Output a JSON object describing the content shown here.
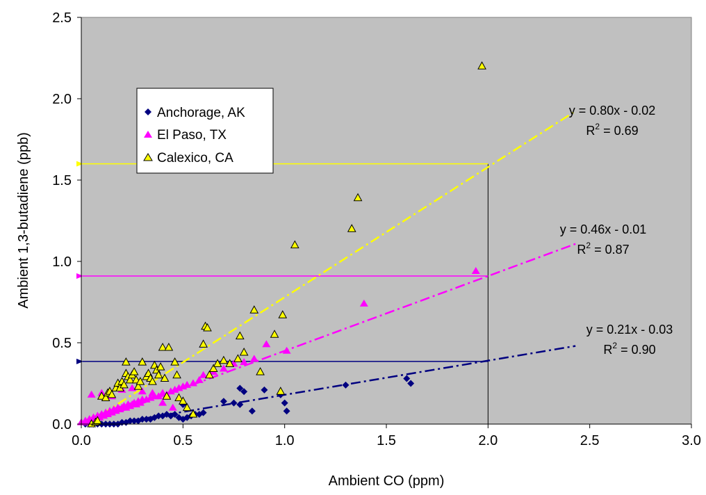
{
  "chart_data": {
    "type": "scatter",
    "title": "",
    "xlabel": "Ambient CO (ppm)",
    "ylabel": "Ambient 1,3-butadiene (ppb)",
    "xlim": [
      0,
      3
    ],
    "ylim": [
      0,
      2.5
    ],
    "x_ticks": [
      "0.0",
      "0.5",
      "1.0",
      "1.5",
      "2.0",
      "2.5",
      "3.0"
    ],
    "y_ticks": [
      "0.0",
      "0.5",
      "1.0",
      "1.5",
      "2.0",
      "2.5"
    ],
    "grid": false,
    "plot_background": "#c0c0c0",
    "legend_position": "upper-left inside plot",
    "series": [
      {
        "name": "Anchorage, AK",
        "marker": "diamond",
        "color": "#000080",
        "points": [
          [
            0.02,
            0.0
          ],
          [
            0.04,
            0.0
          ],
          [
            0.06,
            0.0
          ],
          [
            0.08,
            0.0
          ],
          [
            0.1,
            0.0
          ],
          [
            0.12,
            0.0
          ],
          [
            0.14,
            0.0
          ],
          [
            0.16,
            0.0
          ],
          [
            0.18,
            0.0
          ],
          [
            0.2,
            0.01
          ],
          [
            0.22,
            0.01
          ],
          [
            0.24,
            0.02
          ],
          [
            0.26,
            0.02
          ],
          [
            0.28,
            0.02
          ],
          [
            0.3,
            0.03
          ],
          [
            0.32,
            0.03
          ],
          [
            0.34,
            0.03
          ],
          [
            0.36,
            0.04
          ],
          [
            0.38,
            0.05
          ],
          [
            0.4,
            0.05
          ],
          [
            0.42,
            0.06
          ],
          [
            0.44,
            0.05
          ],
          [
            0.46,
            0.06
          ],
          [
            0.48,
            0.04
          ],
          [
            0.5,
            0.03
          ],
          [
            0.52,
            0.04
          ],
          [
            0.5,
            0.12
          ],
          [
            0.54,
            0.05
          ],
          [
            0.56,
            0.06
          ],
          [
            0.58,
            0.06
          ],
          [
            0.6,
            0.07
          ],
          [
            0.7,
            0.14
          ],
          [
            0.75,
            0.13
          ],
          [
            0.78,
            0.12
          ],
          [
            0.78,
            0.22
          ],
          [
            0.8,
            0.2
          ],
          [
            0.84,
            0.08
          ],
          [
            0.9,
            0.21
          ],
          [
            0.98,
            0.18
          ],
          [
            1.0,
            0.13
          ],
          [
            1.01,
            0.08
          ],
          [
            1.3,
            0.24
          ],
          [
            1.6,
            0.28
          ],
          [
            1.62,
            0.25
          ]
        ]
      },
      {
        "name": "El Paso, TX",
        "marker": "triangle",
        "color": "#ff00ff",
        "points": [
          [
            0.0,
            0.01
          ],
          [
            0.02,
            0.02
          ],
          [
            0.03,
            0.01
          ],
          [
            0.04,
            0.03
          ],
          [
            0.05,
            0.02
          ],
          [
            0.06,
            0.04
          ],
          [
            0.07,
            0.03
          ],
          [
            0.08,
            0.05
          ],
          [
            0.09,
            0.04
          ],
          [
            0.1,
            0.06
          ],
          [
            0.11,
            0.05
          ],
          [
            0.12,
            0.07
          ],
          [
            0.13,
            0.06
          ],
          [
            0.14,
            0.08
          ],
          [
            0.15,
            0.07
          ],
          [
            0.16,
            0.09
          ],
          [
            0.17,
            0.08
          ],
          [
            0.18,
            0.1
          ],
          [
            0.19,
            0.09
          ],
          [
            0.2,
            0.1
          ],
          [
            0.21,
            0.11
          ],
          [
            0.22,
            0.1
          ],
          [
            0.23,
            0.12
          ],
          [
            0.24,
            0.11
          ],
          [
            0.25,
            0.12
          ],
          [
            0.26,
            0.13
          ],
          [
            0.27,
            0.12
          ],
          [
            0.28,
            0.14
          ],
          [
            0.29,
            0.13
          ],
          [
            0.3,
            0.15
          ],
          [
            0.32,
            0.15
          ],
          [
            0.34,
            0.16
          ],
          [
            0.36,
            0.17
          ],
          [
            0.38,
            0.17
          ],
          [
            0.4,
            0.19
          ],
          [
            0.42,
            0.18
          ],
          [
            0.44,
            0.2
          ],
          [
            0.46,
            0.21
          ],
          [
            0.48,
            0.22
          ],
          [
            0.5,
            0.23
          ],
          [
            0.52,
            0.24
          ],
          [
            0.55,
            0.25
          ],
          [
            0.58,
            0.27
          ],
          [
            0.6,
            0.3
          ],
          [
            0.65,
            0.32
          ],
          [
            0.7,
            0.34
          ],
          [
            0.75,
            0.37
          ],
          [
            0.8,
            0.38
          ],
          [
            0.85,
            0.4
          ],
          [
            0.05,
            0.18
          ],
          [
            0.1,
            0.19
          ],
          [
            0.15,
            0.17
          ],
          [
            0.2,
            0.21
          ],
          [
            0.25,
            0.22
          ],
          [
            0.3,
            0.2
          ],
          [
            0.35,
            0.19
          ],
          [
            0.4,
            0.13
          ],
          [
            0.42,
            0.17
          ],
          [
            0.45,
            0.1
          ],
          [
            0.91,
            0.49
          ],
          [
            1.01,
            0.45
          ],
          [
            1.39,
            0.74
          ],
          [
            1.94,
            0.94
          ]
        ]
      },
      {
        "name": "Calexico, CA",
        "marker": "triangle-open",
        "color": "#ffff00",
        "points": [
          [
            0.05,
            0.0
          ],
          [
            0.07,
            0.01
          ],
          [
            0.08,
            0.02
          ],
          [
            0.1,
            0.17
          ],
          [
            0.12,
            0.16
          ],
          [
            0.13,
            0.19
          ],
          [
            0.14,
            0.2
          ],
          [
            0.15,
            0.18
          ],
          [
            0.17,
            0.22
          ],
          [
            0.18,
            0.25
          ],
          [
            0.19,
            0.22
          ],
          [
            0.2,
            0.26
          ],
          [
            0.21,
            0.24
          ],
          [
            0.22,
            0.31
          ],
          [
            0.23,
            0.29
          ],
          [
            0.24,
            0.27
          ],
          [
            0.25,
            0.3
          ],
          [
            0.26,
            0.32
          ],
          [
            0.27,
            0.27
          ],
          [
            0.28,
            0.23
          ],
          [
            0.29,
            0.26
          ],
          [
            0.3,
            0.38
          ],
          [
            0.32,
            0.29
          ],
          [
            0.33,
            0.31
          ],
          [
            0.34,
            0.28
          ],
          [
            0.35,
            0.26
          ],
          [
            0.36,
            0.36
          ],
          [
            0.37,
            0.33
          ],
          [
            0.38,
            0.3
          ],
          [
            0.39,
            0.35
          ],
          [
            0.4,
            0.47
          ],
          [
            0.41,
            0.28
          ],
          [
            0.42,
            0.17
          ],
          [
            0.43,
            0.47
          ],
          [
            0.46,
            0.38
          ],
          [
            0.47,
            0.3
          ],
          [
            0.48,
            0.16
          ],
          [
            0.5,
            0.14
          ],
          [
            0.52,
            0.1
          ],
          [
            0.55,
            0.06
          ],
          [
            0.6,
            0.49
          ],
          [
            0.61,
            0.6
          ],
          [
            0.62,
            0.59
          ],
          [
            0.63,
            0.3
          ],
          [
            0.65,
            0.34
          ],
          [
            0.67,
            0.37
          ],
          [
            0.7,
            0.39
          ],
          [
            0.73,
            0.37
          ],
          [
            0.77,
            0.4
          ],
          [
            0.78,
            0.54
          ],
          [
            0.8,
            0.44
          ],
          [
            0.85,
            0.7
          ],
          [
            0.88,
            0.32
          ],
          [
            0.95,
            0.55
          ],
          [
            0.99,
            0.67
          ],
          [
            0.98,
            0.2
          ],
          [
            1.05,
            1.1
          ],
          [
            1.33,
            1.2
          ],
          [
            1.36,
            1.39
          ],
          [
            1.97,
            2.2
          ],
          [
            0.22,
            0.38
          ]
        ]
      }
    ],
    "trendlines": [
      {
        "series": "Anchorage, AK",
        "color": "#000080",
        "slope": 0.21,
        "intercept": -0.03,
        "x_range": [
          0,
          2.43
        ],
        "equation": "y = 0.21x - 0.03",
        "r2_prefix": "R",
        "r2_sup": "2",
        "r2_value": " = 0.90"
      },
      {
        "series": "El Paso, TX",
        "color": "#ff00ff",
        "slope": 0.46,
        "intercept": -0.01,
        "x_range": [
          0,
          2.43
        ],
        "equation": "y = 0.46x - 0.01",
        "r2_prefix": "R",
        "r2_sup": "2",
        "r2_value": " = 0.87"
      },
      {
        "series": "Calexico, CA",
        "color": "#ffff00",
        "slope": 0.8,
        "intercept": -0.02,
        "x_range": [
          0,
          2.43
        ],
        "equation": "y = 0.80x - 0.02",
        "r2_prefix": "R",
        "r2_sup": "2",
        "r2_value": " = 0.69"
      }
    ],
    "reference_lines": [
      {
        "type": "vertical",
        "x": 2.0,
        "y_range": [
          0,
          1.6
        ],
        "color": "#000000"
      },
      {
        "type": "horizontal-arrow",
        "y": 1.6,
        "x_from": 2.0,
        "x_to": 0.0,
        "color": "#ffff00"
      },
      {
        "type": "horizontal-arrow",
        "y": 0.91,
        "x_from": 2.0,
        "x_to": 0.0,
        "color": "#ff00ff"
      },
      {
        "type": "horizontal-arrow",
        "y": 0.385,
        "x_from": 2.0,
        "x_to": 0.0,
        "color": "#000080"
      }
    ]
  }
}
